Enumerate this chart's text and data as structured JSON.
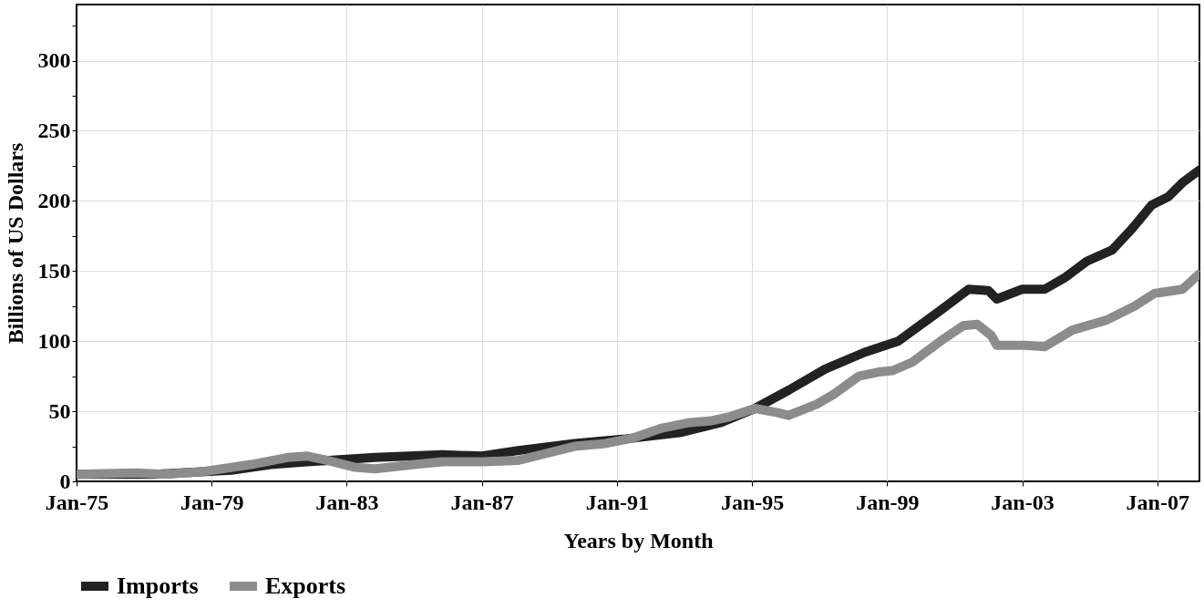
{
  "chart_data": {
    "type": "line",
    "xlabel": "Years by Month",
    "ylabel": "Billions of US Dollars",
    "xlim": [
      "1975-01",
      "2008-04"
    ],
    "xticks": [
      {
        "value": "1975-01",
        "label": "Jan-75"
      },
      {
        "value": "1979-01",
        "label": "Jan-79"
      },
      {
        "value": "1983-01",
        "label": "Jan-83"
      },
      {
        "value": "1987-01",
        "label": "Jan-87"
      },
      {
        "value": "1991-01",
        "label": "Jan-91"
      },
      {
        "value": "1995-01",
        "label": "Jan-95"
      },
      {
        "value": "1999-01",
        "label": "Jan-99"
      },
      {
        "value": "2003-01",
        "label": "Jan-03"
      },
      {
        "value": "2007-01",
        "label": "Jan-07"
      }
    ],
    "ylim": [
      0,
      340
    ],
    "yticks": [
      0,
      {
        "value": 25,
        "label": null
      },
      50,
      {
        "value": 75,
        "label": null
      },
      100,
      {
        "value": 125,
        "label": null
      },
      150,
      {
        "value": 175,
        "label": null
      },
      200,
      {
        "value": 225,
        "label": null
      },
      250,
      {
        "value": 275,
        "label": null
      },
      300,
      {
        "value": 325,
        "label": null
      }
    ],
    "grid": true,
    "legend": "bottom",
    "marker": "none",
    "line_style": "solid",
    "series": [
      {
        "name": "Imports",
        "color": "#222222",
        "x": [
          "1975-01",
          "1977-05",
          "1979-08",
          "1980-10",
          "1981-11",
          "1983-11",
          "1985-11",
          "1987-01",
          "1988-02",
          "1989-10",
          "1991-03",
          "1992-12",
          "1994-02",
          "1995-02",
          "1996-02",
          "1997-03",
          "1998-05",
          "1999-05",
          "2000-08",
          "2001-06",
          "2002-01",
          "2002-04",
          "2003-01",
          "2003-09",
          "2004-04",
          "2004-12",
          "2005-09",
          "2006-04",
          "2006-11",
          "2007-05",
          "2007-10",
          "2008-04"
        ],
        "values": [
          5,
          5,
          8,
          12,
          14,
          17,
          19,
          18,
          22,
          27,
          30,
          35,
          42,
          52,
          65,
          80,
          92,
          100,
          122,
          137,
          136,
          130,
          137,
          137,
          145,
          157,
          165,
          180,
          197,
          203,
          213,
          222
        ]
      },
      {
        "name": "Exports",
        "color": "#8c8c8c",
        "x": [
          "1975-01",
          "1976-10",
          "1977-08",
          "1978-10",
          "1980-03",
          "1981-04",
          "1981-11",
          "1982-06",
          "1983-04",
          "1983-11",
          "1985-01",
          "1985-11",
          "1987-01",
          "1988-02",
          "1988-12",
          "1989-10",
          "1990-09",
          "1991-07",
          "1992-05",
          "1993-03",
          "1993-10",
          "1994-05",
          "1995-02",
          "1995-10",
          "1996-02",
          "1996-12",
          "1997-06",
          "1998-03",
          "1998-10",
          "1999-03",
          "1999-10",
          "2000-08",
          "2001-04",
          "2001-09",
          "2002-02",
          "2002-04",
          "2003-02",
          "2003-09",
          "2004-07",
          "2005-07",
          "2006-05",
          "2006-12",
          "2007-10",
          "2008-04"
        ],
        "values": [
          5,
          6,
          5,
          7,
          12,
          17,
          18,
          15,
          10,
          9,
          12,
          14,
          14,
          15,
          20,
          25,
          27,
          31,
          38,
          42,
          43,
          46,
          52,
          49,
          47,
          55,
          62,
          75,
          78,
          79,
          85,
          100,
          111,
          112,
          104,
          97,
          97,
          96,
          108,
          115,
          125,
          134,
          137,
          148
        ]
      }
    ]
  }
}
